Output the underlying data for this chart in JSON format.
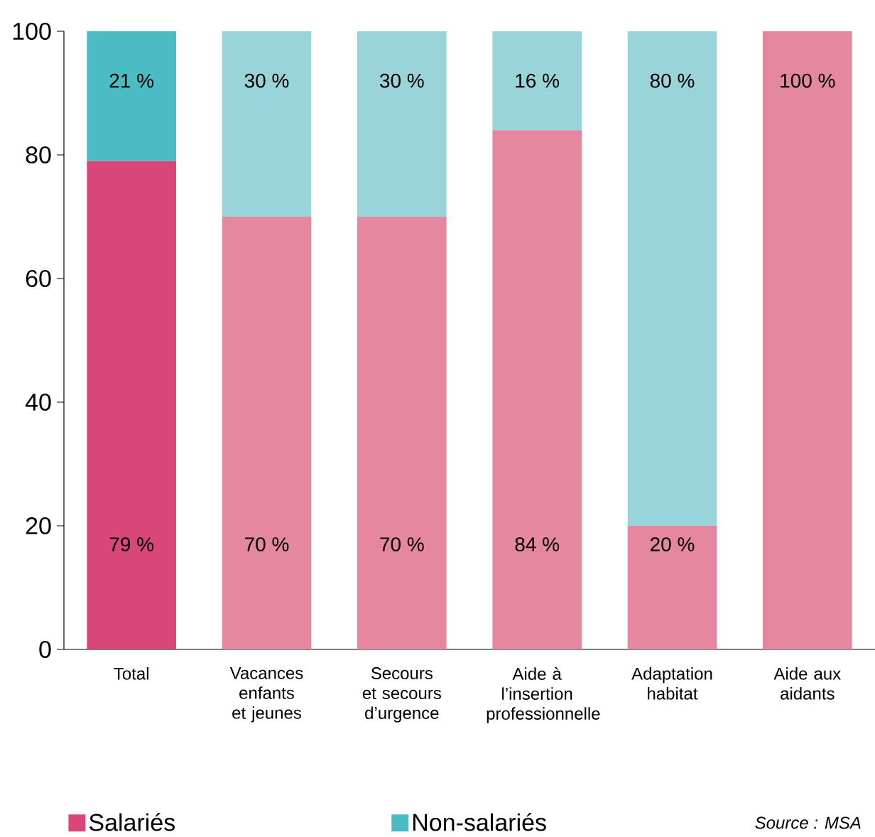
{
  "chart_data": {
    "type": "bar",
    "stacked": true,
    "categories": [
      "Total",
      "Vacances enfants et jeunes",
      "Secours et secours d’urgence",
      "Aide à l’insertion professionnelle",
      "Adaptation habitat",
      "Aide aux aidants"
    ],
    "series": [
      {
        "name": "Salariés",
        "color": "#d9467a",
        "colors": [
          "#d9467a",
          "#e4879f",
          "#e4879f",
          "#e4879f",
          "#e4879f",
          "#e4879f"
        ],
        "values": [
          79,
          70,
          70,
          84,
          20,
          100
        ],
        "value_labels": [
          "79 %",
          "70 %",
          "70 %",
          "84 %",
          "20 %",
          "100 %"
        ]
      },
      {
        "name": "Non-salariés",
        "color": "#4bbcc4",
        "colors": [
          "#4bbcc4",
          "#98d4da",
          "#98d4da",
          "#98d4da",
          "#98d4da",
          "#98d4da"
        ],
        "values": [
          21,
          30,
          30,
          16,
          80,
          null
        ],
        "value_labels": [
          "21 %",
          "30 %",
          "30 %",
          "16 %",
          "80 %",
          null
        ]
      }
    ],
    "ylim": [
      0,
      100
    ],
    "yticks": [
      0,
      20,
      40,
      60,
      80,
      100
    ],
    "grid": false,
    "legend": "bottom",
    "annotations": [
      "Source : MSA"
    ]
  }
}
